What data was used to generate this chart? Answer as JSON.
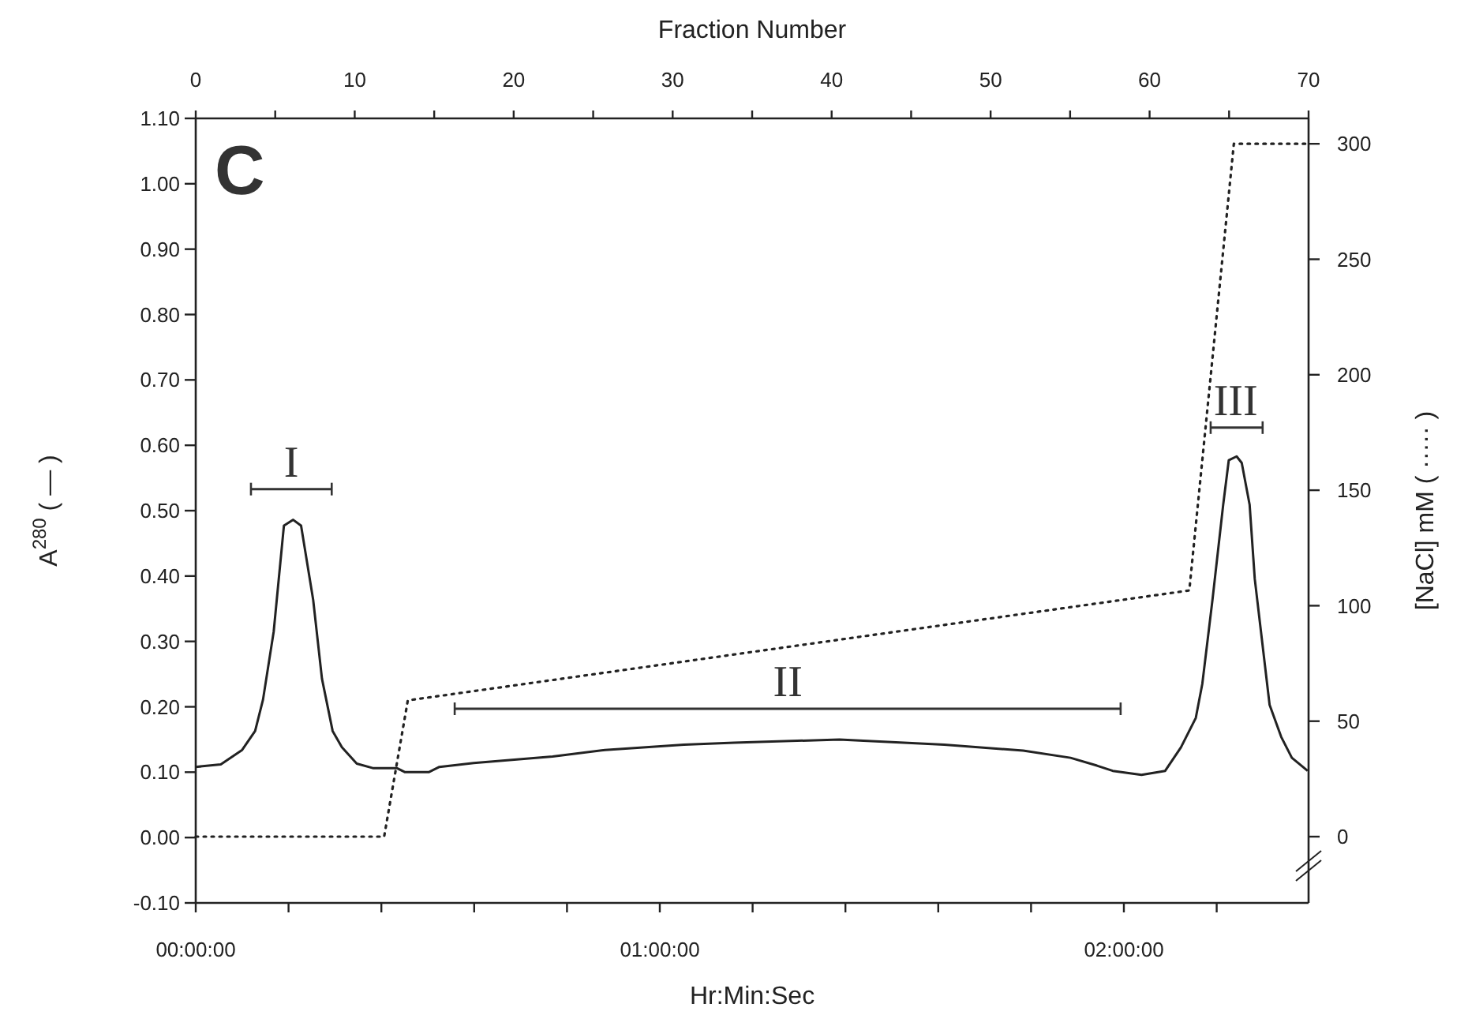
{
  "chart_data": {
    "type": "line",
    "xlabel": "Hr:Min:Sec",
    "x2label": "Fraction Number",
    "ylabel": "A$^{280}$ ( — )",
    "y2label": "[NaCl] mM ( ····· )",
    "annotations": [
      "C",
      {
        "text": "I",
        "x": 0.206,
        "y": 0.533
      },
      {
        "text": "II",
        "x": 1.276,
        "y": 0.197
      },
      {
        "text": "III",
        "x": 2.241,
        "y": 0.627
      }
    ],
    "xlim": [
      0,
      2.398
    ],
    "xticks": [
      {
        "value": 0,
        "label": "00:00:00"
      },
      {
        "value": 0.2,
        "label": null
      },
      {
        "value": 0.4,
        "label": null
      },
      {
        "value": 0.6,
        "label": null
      },
      {
        "value": 0.8,
        "label": null
      },
      {
        "value": 1,
        "label": "01:00:00"
      },
      {
        "value": 1.2,
        "label": null
      },
      {
        "value": 1.4,
        "label": null
      },
      {
        "value": 1.6,
        "label": null
      },
      {
        "value": 1.8,
        "label": null
      },
      {
        "value": 2,
        "label": "02:00:00"
      },
      {
        "value": 2.2,
        "label": null
      }
    ],
    "x2lim": [
      0,
      70
    ],
    "x2ticks": [
      0,
      {
        "value": 5,
        "label": null
      },
      10,
      {
        "value": 15,
        "label": null
      },
      20,
      {
        "value": 25,
        "label": null
      },
      30,
      {
        "value": 35,
        "label": null
      },
      40,
      {
        "value": 45,
        "label": null
      },
      50,
      {
        "value": 55,
        "label": null
      },
      60,
      {
        "value": 65,
        "label": null
      },
      70
    ],
    "ylim": [
      -0.1,
      1.1
    ],
    "yticks": [
      {
        "value": -0.1,
        "label": "-0.10"
      },
      {
        "value": 0,
        "label": "0.00"
      },
      {
        "value": 0.1,
        "label": "0.10"
      },
      {
        "value": 0.2,
        "label": "0.20"
      },
      {
        "value": 0.3,
        "label": "0.30"
      },
      {
        "value": 0.4,
        "label": "0.40"
      },
      {
        "value": 0.5,
        "label": "0.50"
      },
      {
        "value": 0.6,
        "label": "0.60"
      },
      {
        "value": 0.7,
        "label": "0.70"
      },
      {
        "value": 0.8,
        "label": "0.80"
      },
      {
        "value": 0.9,
        "label": "0.90"
      },
      {
        "value": 1,
        "label": "1.00"
      },
      {
        "value": 1.1,
        "label": "1.10"
      }
    ],
    "y2lim": [
      -28.7,
      311
    ],
    "y2ticks": [
      0,
      50,
      100,
      150,
      200,
      250,
      300
    ],
    "grid": false,
    "marker": "none",
    "series": [
      {
        "color": "#333333",
        "line_style": "solid",
        "x": [
          0.119,
          0.293
        ],
        "values": [
          0.533,
          0.533
        ]
      },
      {
        "color": "#333333",
        "line_style": "solid",
        "x": [
          0.558,
          1.993
        ],
        "values": [
          0.197,
          0.197
        ]
      },
      {
        "color": "#333333",
        "line_style": "solid",
        "x": [
          2.187,
          2.299
        ],
        "values": [
          0.627,
          0.627
        ]
      },
      {
        "color": "#222222",
        "line_style": "solid",
        "x": [
          0,
          0.054,
          0.1,
          0.128,
          0.145,
          0.168,
          0.19,
          0.21,
          0.227,
          0.253,
          0.272,
          0.295,
          0.315,
          0.347,
          0.383,
          0.434,
          0.451,
          0.502,
          0.525,
          0.599,
          0.769,
          0.882,
          1.052,
          1.16,
          1.387,
          1.613,
          1.783,
          1.885,
          1.942,
          1.976,
          2.038,
          2.089,
          2.123,
          2.155,
          2.169,
          2.191,
          2.214,
          2.226,
          2.243,
          2.254,
          2.271,
          2.282,
          2.314,
          2.339,
          2.362,
          2.396
        ],
        "values": [
          0.108,
          0.112,
          0.134,
          0.163,
          0.211,
          0.315,
          0.477,
          0.486,
          0.477,
          0.364,
          0.243,
          0.163,
          0.138,
          0.113,
          0.106,
          0.106,
          0.1,
          0.1,
          0.108,
          0.114,
          0.124,
          0.134,
          0.142,
          0.145,
          0.15,
          0.142,
          0.133,
          0.122,
          0.11,
          0.102,
          0.096,
          0.102,
          0.138,
          0.183,
          0.235,
          0.364,
          0.509,
          0.577,
          0.583,
          0.573,
          0.509,
          0.396,
          0.203,
          0.154,
          0.122,
          0.102
        ]
      },
      {
        "color": "#222222",
        "line_style": "dotted",
        "axis": "y2",
        "x": [
          0,
          0.406,
          0.457,
          2.141,
          2.237,
          2.398
        ],
        "values": [
          0,
          0,
          59,
          106.6,
          300,
          300
        ]
      }
    ]
  }
}
